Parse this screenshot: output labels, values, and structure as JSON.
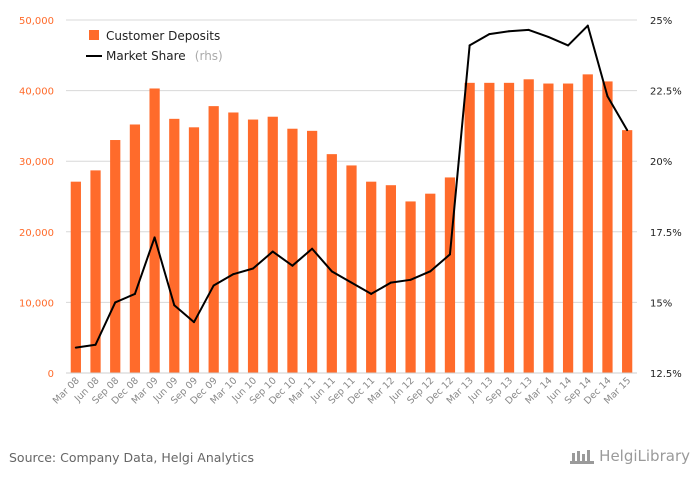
{
  "colors": {
    "bar": "#ff6b2b",
    "line": "#000000",
    "grid": "#d8d8d8"
  },
  "legend": {
    "bars": "Customer Deposits",
    "line": "Market Share",
    "line_note": "(rhs)",
    "placement": "top-left"
  },
  "footer": {
    "source": "Source: Company Data, Helgi Analytics",
    "brand": "HelgiLibrary"
  },
  "chart_data": {
    "type": "bar",
    "categories": [
      "Mar 08",
      "Jun 08",
      "Sep 08",
      "Dec 08",
      "Mar 09",
      "Jun 09",
      "Sep 09",
      "Dec 09",
      "Mar 10",
      "Jun 10",
      "Sep 10",
      "Dec 10",
      "Mar 11",
      "Jun 11",
      "Sep 11",
      "Dec 11",
      "Mar 12",
      "Jun 12",
      "Sep 12",
      "Dec 12",
      "Mar 13",
      "Jun 13",
      "Sep 13",
      "Dec 13",
      "Mar 14",
      "Jun 14",
      "Sep 14",
      "Dec 14",
      "Mar 15"
    ],
    "series": [
      {
        "name": "Customer Deposits",
        "type": "bar",
        "axis": "left",
        "values": [
          27100,
          28700,
          33000,
          35200,
          40300,
          36000,
          34800,
          37800,
          36900,
          35900,
          36300,
          34600,
          34300,
          31000,
          29400,
          27100,
          26600,
          24300,
          25400,
          27700,
          41100,
          41100,
          41100,
          41600,
          41000,
          41000,
          42300,
          41300,
          34400
        ]
      },
      {
        "name": "Market Share",
        "type": "line",
        "axis": "right",
        "values": [
          13.4,
          13.5,
          15.0,
          15.3,
          17.3,
          14.9,
          14.3,
          15.6,
          16.0,
          16.2,
          16.8,
          16.3,
          16.9,
          16.1,
          15.7,
          15.3,
          15.7,
          15.8,
          16.1,
          16.7,
          24.1,
          24.5,
          24.6,
          24.65,
          24.4,
          24.1,
          24.8,
          22.3,
          21.1
        ]
      }
    ],
    "y_left": {
      "ylim": [
        0,
        50000
      ],
      "ticks": [
        "0",
        "10,000",
        "20,000",
        "30,000",
        "40,000",
        "50,000"
      ],
      "tick_values": [
        0,
        10000,
        20000,
        30000,
        40000,
        50000
      ]
    },
    "y_right": {
      "ylim": [
        12.5,
        25
      ],
      "ticks": [
        "12.5%",
        "15%",
        "17.5%",
        "20%",
        "22.5%",
        "25%"
      ],
      "tick_values": [
        12.5,
        15,
        17.5,
        20,
        22.5,
        25
      ]
    },
    "grid": true
  }
}
